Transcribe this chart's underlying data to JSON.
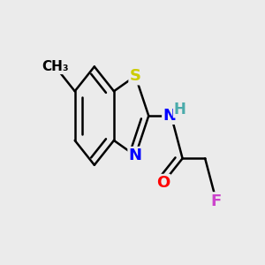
{
  "background_color": "#ebebeb",
  "atom_colors": {
    "C": "#000000",
    "H": "#4aabab",
    "N": "#0000ff",
    "O": "#ff0000",
    "S": "#cccc00",
    "F": "#cc44cc",
    "CH3": "#000000"
  },
  "bond_color": "#000000",
  "bond_width": 1.8,
  "font_size": 12,
  "fig_width": 3.0,
  "fig_height": 3.0
}
